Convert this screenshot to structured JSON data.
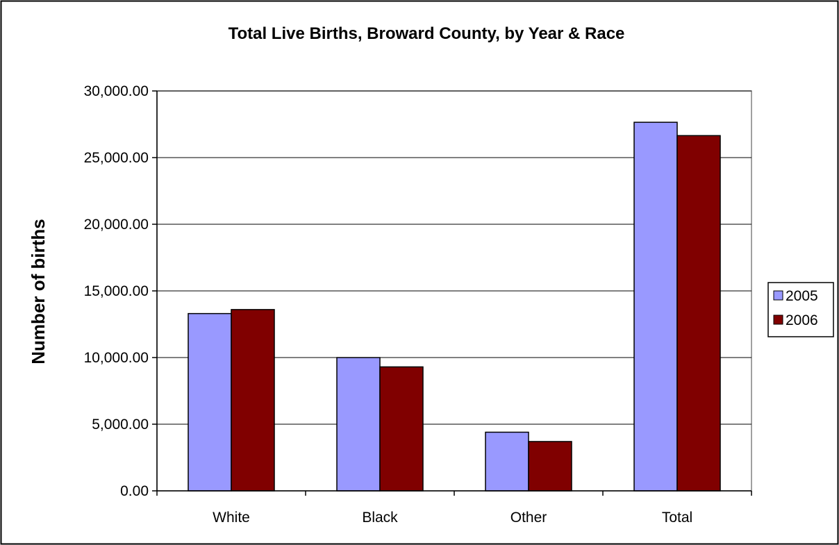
{
  "chart_data": {
    "type": "bar",
    "title": "Total Live Births, Broward County, by Year & Race",
    "xlabel": "",
    "ylabel": "Number of births",
    "categories": [
      "White",
      "Black",
      "Other",
      "Total"
    ],
    "series": [
      {
        "name": "2005",
        "color": "#9999ff",
        "values": [
          13300,
          10000,
          4400,
          27650
        ]
      },
      {
        "name": "2006",
        "color": "#800000",
        "values": [
          13600,
          9300,
          3700,
          26650
        ]
      }
    ],
    "ylim": [
      0,
      30000
    ],
    "yticks": [
      0,
      5000,
      10000,
      15000,
      20000,
      25000,
      30000
    ],
    "ytick_labels": [
      "0.00",
      "5,000.00",
      "10,000.00",
      "15,000.00",
      "20,000.00",
      "25,000.00",
      "30,000.00"
    ],
    "grid": true,
    "legend_position": "right",
    "plot_background": "#ffffff",
    "gridline_color": "#000000",
    "bar_outline_color": "#000000"
  }
}
